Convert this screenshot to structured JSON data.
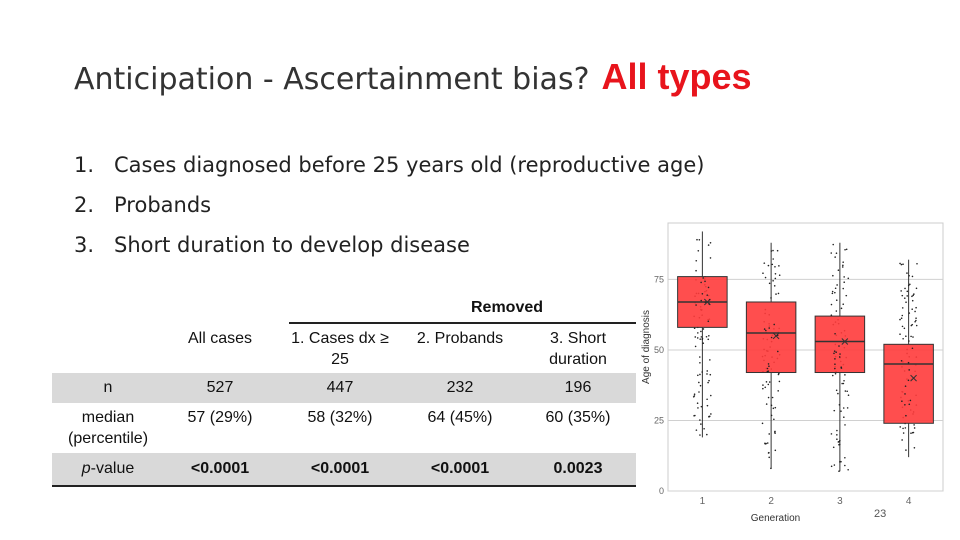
{
  "title": {
    "main": "Anticipation - Ascertainment bias?",
    "accent": "All types"
  },
  "bullets": [
    {
      "num": "1.",
      "text": "Cases diagnosed before 25 years old (reproductive age)"
    },
    {
      "num": "2.",
      "text": "Probands"
    },
    {
      "num": "3.",
      "text": "Short duration to develop disease"
    }
  ],
  "table": {
    "removed_label": "Removed",
    "headers": {
      "all": "All cases",
      "c1_line1": "1. Cases dx ≥",
      "c1_line2": "25",
      "c2": "2. Probands",
      "c3_line1": "3. Short",
      "c3_line2": "duration"
    },
    "rows": [
      {
        "label": "n",
        "all": "527",
        "c1": "447",
        "c2": "232",
        "c3": "196"
      },
      {
        "label_line1": "median",
        "label_line2": "(percentile)",
        "all": "57 (29%)",
        "c1": "58 (32%)",
        "c2": "64 (45%)",
        "c3": "60 (35%)"
      },
      {
        "label_prefix": "p",
        "label_suffix": "-value",
        "all": "<0.0001",
        "c1": "<0.0001",
        "c2": "<0.0001",
        "c3": "0.0023"
      }
    ]
  },
  "chart_data": {
    "type": "box",
    "xlabel": "Generation",
    "ylabel": "Age of diagnosis",
    "categories": [
      "1",
      "2",
      "3",
      "4"
    ],
    "yticks": [
      0,
      25,
      50,
      75
    ],
    "ylim": [
      0,
      95
    ],
    "grid": true,
    "box_color": "#ff3b3b",
    "boxes": [
      {
        "category": "1",
        "min": 19,
        "q1": 58,
        "median": 67,
        "q3": 76,
        "max": 92,
        "mean": 67
      },
      {
        "category": "2",
        "min": 8,
        "q1": 42,
        "median": 56,
        "q3": 67,
        "max": 88,
        "mean": 55
      },
      {
        "category": "3",
        "min": 7,
        "q1": 42,
        "median": 53,
        "q3": 62,
        "max": 88,
        "mean": 53
      },
      {
        "category": "4",
        "min": 12,
        "q1": 24,
        "median": 45,
        "q3": 52,
        "max": 82,
        "mean": 40
      }
    ]
  },
  "page_number": "23"
}
